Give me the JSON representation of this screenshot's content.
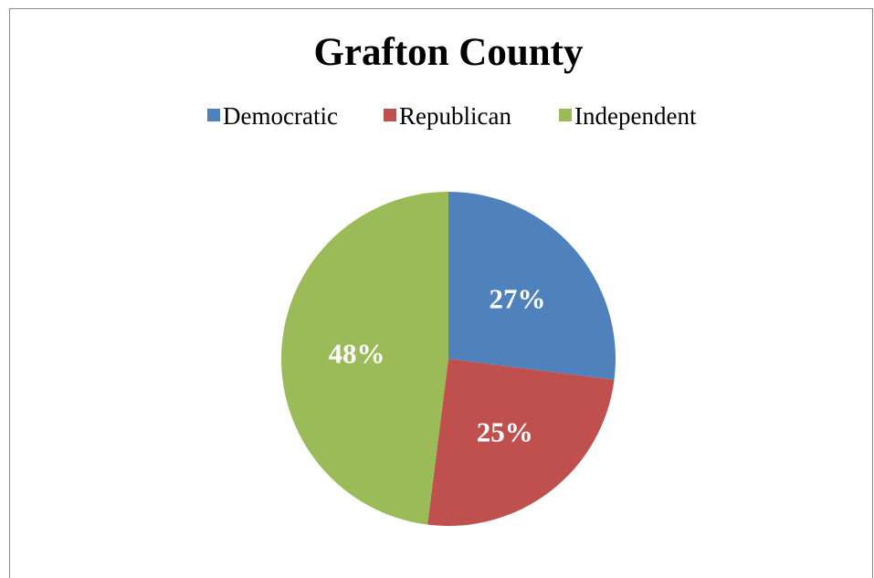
{
  "chart_data": {
    "type": "pie",
    "title": "Grafton County",
    "categories": [
      "Democratic",
      "Republican",
      "Independent"
    ],
    "values": [
      27,
      25,
      48
    ],
    "value_labels": [
      "27%",
      "25%",
      "48%"
    ],
    "colors": [
      "#4f81bd",
      "#c0504d",
      "#9bbb59"
    ],
    "legend_position": "top",
    "start_angle": "12 o'clock",
    "direction": "clockwise"
  }
}
